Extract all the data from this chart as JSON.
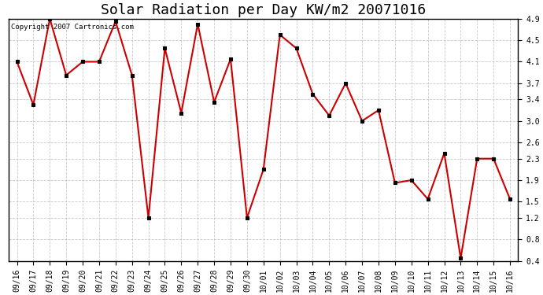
{
  "title": "Solar Radiation per Day KW/m2 20071016",
  "copyright_text": "Copyright 2007 Cartronics.com",
  "x_labels": [
    "09/16",
    "09/17",
    "09/18",
    "09/19",
    "09/20",
    "09/21",
    "09/22",
    "09/23",
    "09/24",
    "09/25",
    "09/26",
    "09/27",
    "09/28",
    "09/29",
    "09/30",
    "10/01",
    "10/02",
    "10/03",
    "10/04",
    "10/05",
    "10/06",
    "10/07",
    "10/08",
    "10/09",
    "10/10",
    "10/11",
    "10/12",
    "10/13",
    "10/14",
    "10/15",
    "10/16"
  ],
  "y_values": [
    4.1,
    3.3,
    4.9,
    3.85,
    4.1,
    4.1,
    4.85,
    3.85,
    1.2,
    4.35,
    3.15,
    4.8,
    3.35,
    4.15,
    1.2,
    2.1,
    4.6,
    4.35,
    3.5,
    3.1,
    3.7,
    3.0,
    3.2,
    1.85,
    1.9,
    1.55,
    2.4,
    0.45,
    2.3,
    2.3,
    1.55
  ],
  "line_color": "#cc0000",
  "marker": "s",
  "marker_size": 3,
  "marker_color": "#000000",
  "ylim": [
    0.4,
    4.9
  ],
  "yticks": [
    0.4,
    0.8,
    1.2,
    1.5,
    1.9,
    2.3,
    2.6,
    3.0,
    3.4,
    3.7,
    4.1,
    4.5,
    4.9
  ],
  "grid_color": "#bbbbbb",
  "grid_style": "--",
  "background_color": "#ffffff",
  "title_fontsize": 13,
  "tick_fontsize": 7,
  "copyright_fontsize": 6.5
}
